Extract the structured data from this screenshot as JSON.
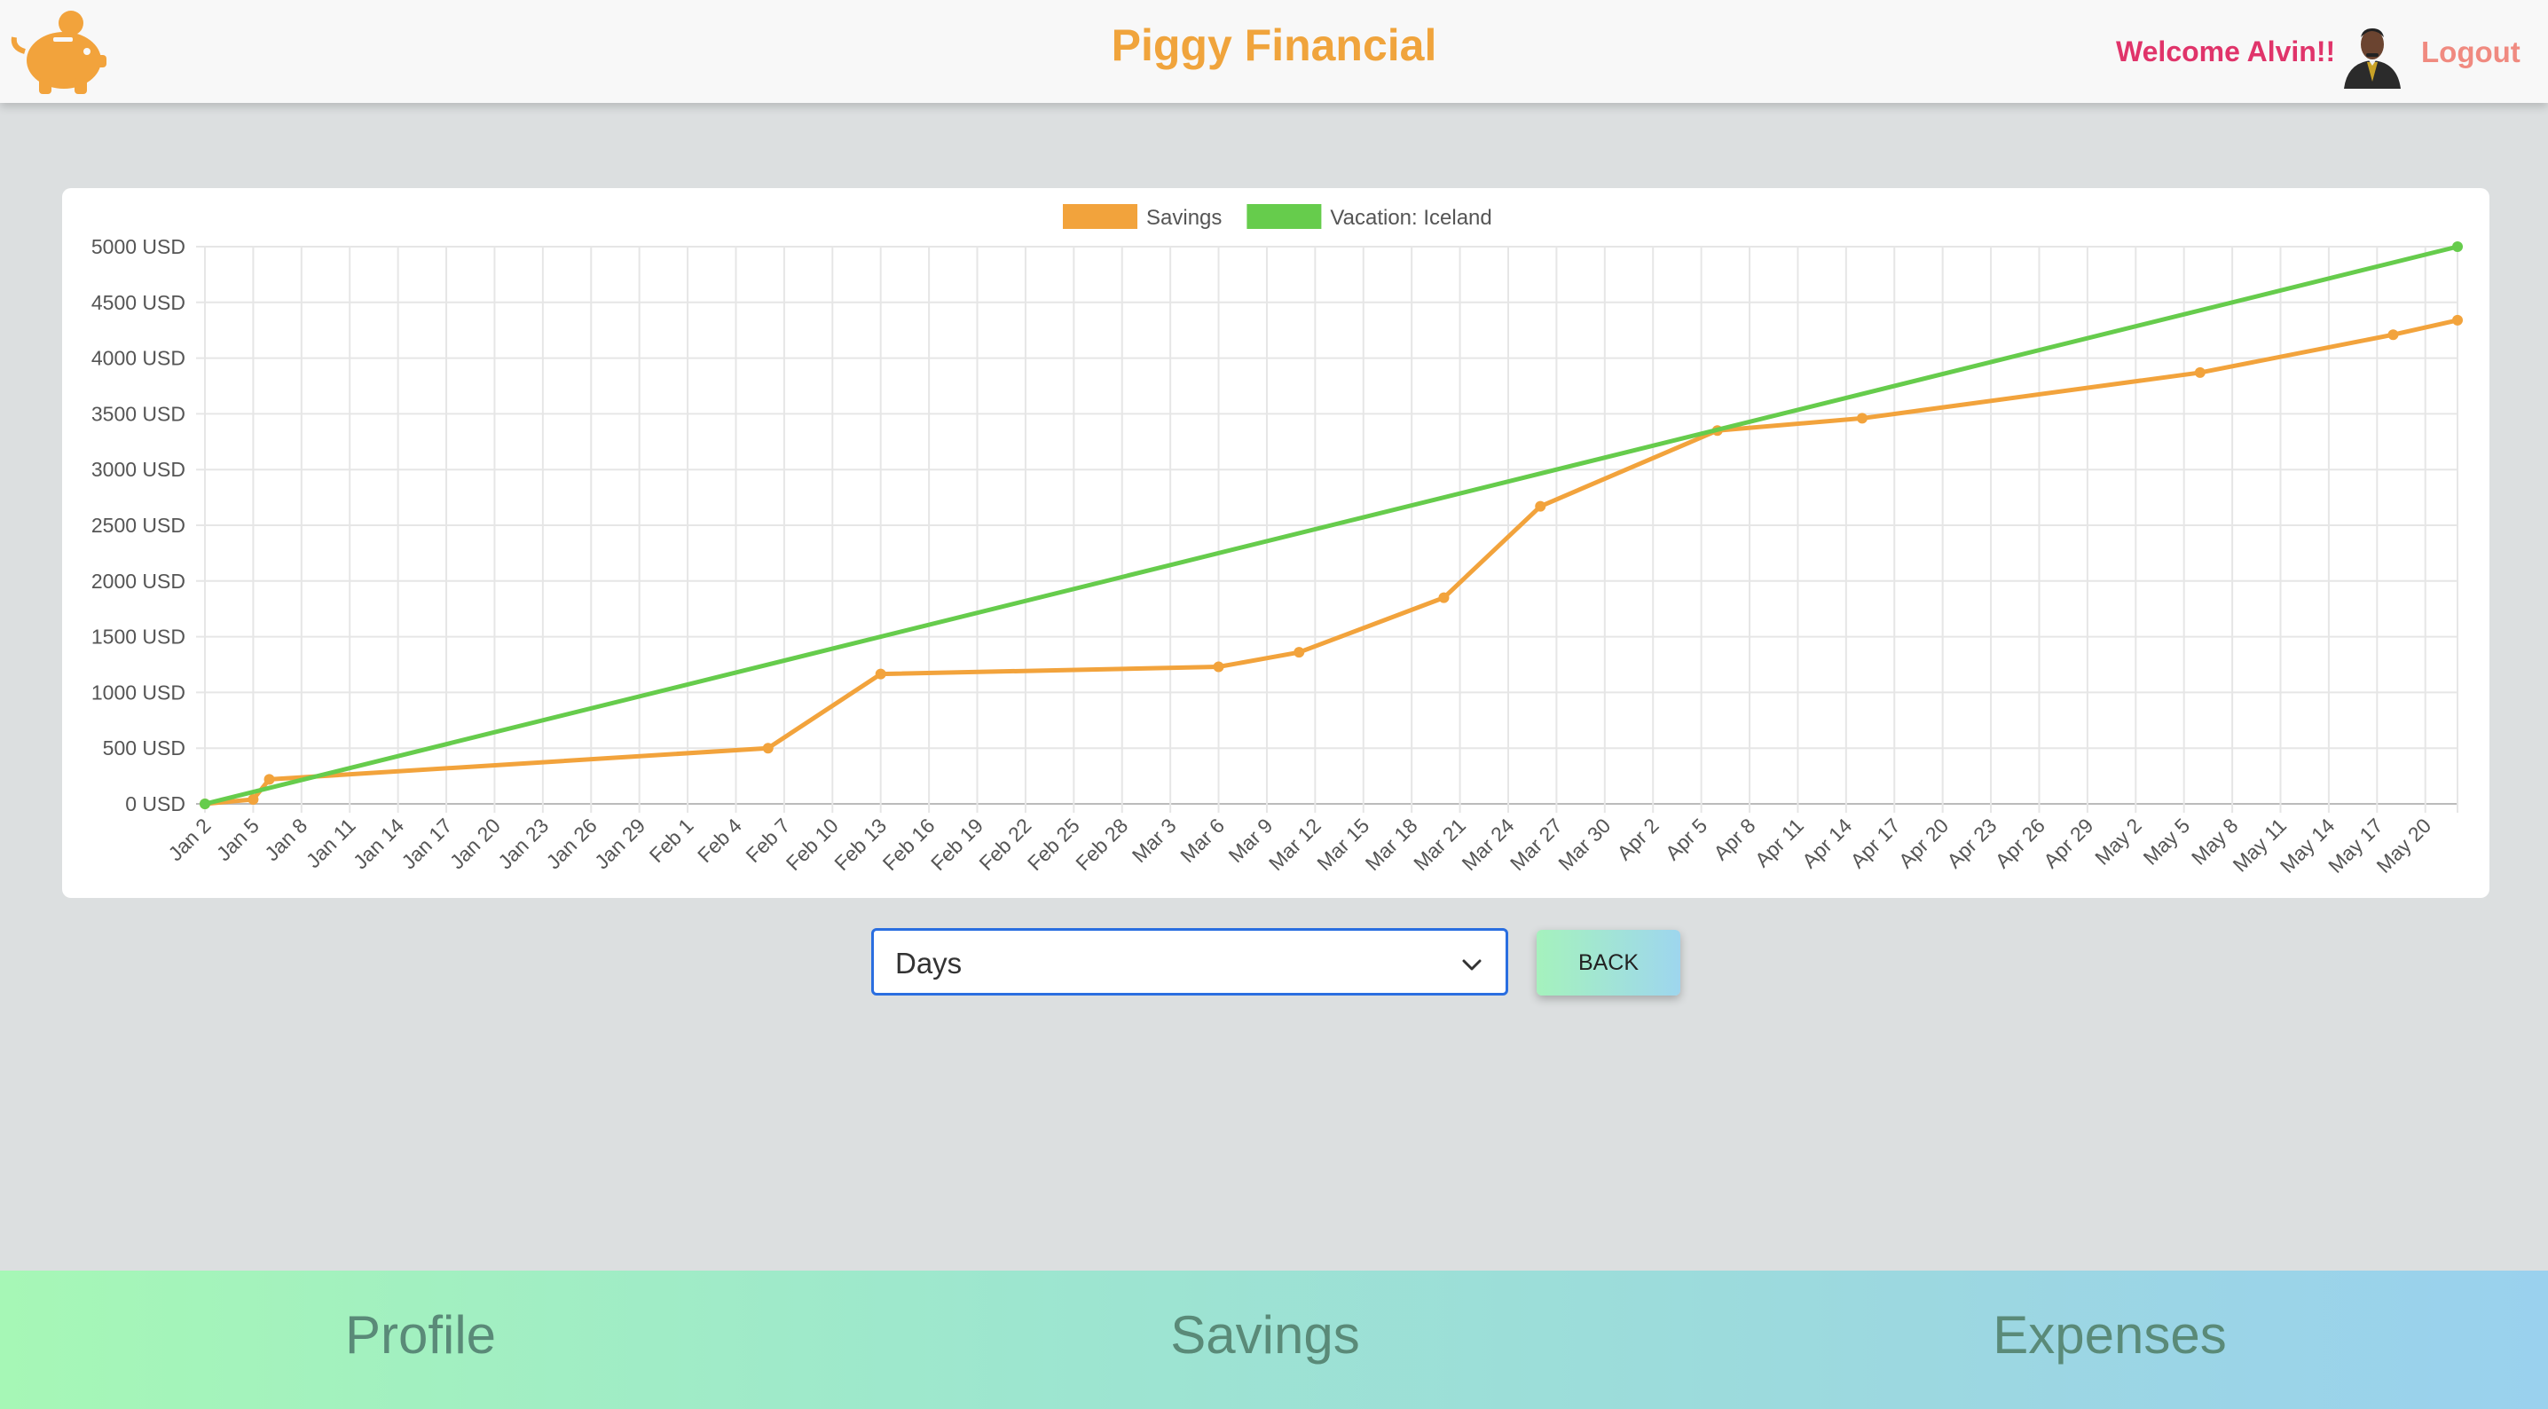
{
  "header": {
    "title": "Piggy Financial",
    "welcome": "Welcome Alvin!!",
    "logout": "Logout"
  },
  "controls": {
    "period_select": "Days",
    "back_label": "BACK"
  },
  "footer": {
    "nav": [
      "Profile",
      "Savings",
      "Expenses"
    ]
  },
  "colors": {
    "savings": "#f2a33c",
    "goal": "#66cc4c",
    "title": "#f0a43c",
    "welcome": "#e0346a"
  },
  "chart_data": {
    "type": "line",
    "legend": "top",
    "grid": true,
    "y_unit": "USD",
    "ylim": [
      0,
      5000
    ],
    "y_ticks": [
      "5000 USD",
      "4500 USD",
      "4000 USD",
      "3500 USD",
      "3000 USD",
      "2500 USD",
      "2000 USD",
      "1500 USD",
      "1000 USD",
      "500 USD",
      "0 USD"
    ],
    "x_ticks": [
      "Jan 2",
      "Jan 5",
      "Jan 8",
      "Jan 11",
      "Jan 14",
      "Jan 17",
      "Jan 20",
      "Jan 23",
      "Jan 26",
      "Jan 29",
      "Feb 1",
      "Feb 4",
      "Feb 7",
      "Feb 10",
      "Feb 13",
      "Feb 16",
      "Feb 19",
      "Feb 22",
      "Feb 25",
      "Feb 28",
      "Mar 3",
      "Mar 6",
      "Mar 9",
      "Mar 12",
      "Mar 15",
      "Mar 18",
      "Mar 21",
      "Mar 24",
      "Mar 27",
      "Mar 30",
      "Apr 2",
      "Apr 5",
      "Apr 8",
      "Apr 11",
      "Apr 14",
      "Apr 17",
      "Apr 20",
      "Apr 23",
      "Apr 26",
      "Apr 29",
      "May 2",
      "May 5",
      "May 8",
      "May 11",
      "May 14",
      "May 17",
      "May 20"
    ],
    "series": [
      {
        "name": "Savings",
        "color": "#f2a33c",
        "points": [
          {
            "x": "Jan 2",
            "y": 0
          },
          {
            "x": "Jan 5",
            "y": 40
          },
          {
            "x": "Jan 6",
            "y": 220
          },
          {
            "x": "Feb 6",
            "y": 500
          },
          {
            "x": "Feb 13",
            "y": 1165
          },
          {
            "x": "Mar 6",
            "y": 1230
          },
          {
            "x": "Mar 11",
            "y": 1360
          },
          {
            "x": "Mar 20",
            "y": 1850
          },
          {
            "x": "Mar 26",
            "y": 2670
          },
          {
            "x": "Apr 6",
            "y": 3350
          },
          {
            "x": "Apr 15",
            "y": 3460
          },
          {
            "x": "May 6",
            "y": 3870
          },
          {
            "x": "May 18",
            "y": 4210
          },
          {
            "x": "May 22",
            "y": 4340
          }
        ]
      },
      {
        "name": "Vacation: Iceland",
        "color": "#66cc4c",
        "points": [
          {
            "x": "Jan 2",
            "y": 0
          },
          {
            "x": "May 22",
            "y": 5000
          }
        ]
      }
    ]
  }
}
